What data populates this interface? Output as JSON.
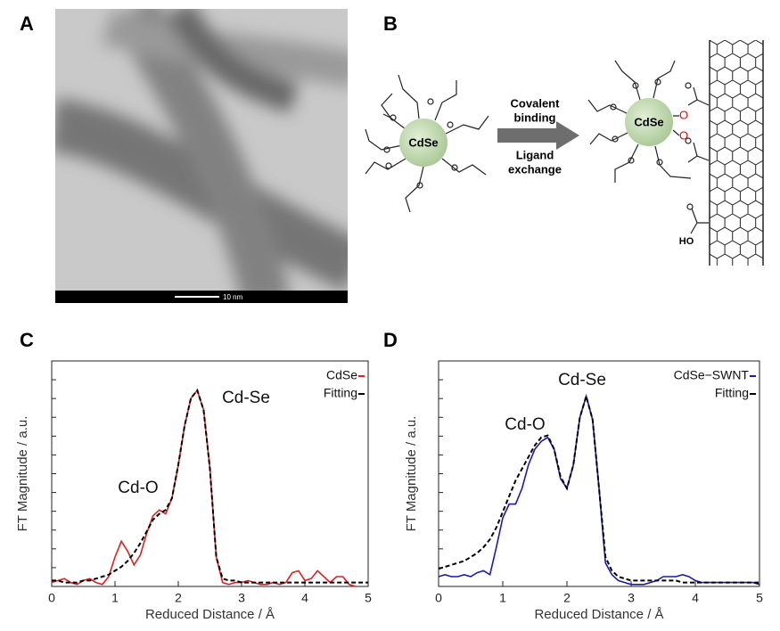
{
  "panels": [
    {
      "label": "A",
      "scale_bar": "10 nm"
    },
    {
      "label": "B",
      "particle_left": "CdSe",
      "arrow_top": [
        "Covalent",
        "binding"
      ],
      "arrow_bottom": [
        "Ligand",
        "exchange"
      ],
      "particle_right": "CdSe",
      "bond_atoms": [
        "O",
        "O"
      ],
      "acid_group": "HO"
    },
    {
      "label": "C"
    },
    {
      "label": "D"
    }
  ],
  "chart_data": [
    {
      "type": "line",
      "xlabel": "Reduced Distance / Å",
      "ylabel": "FT Magnitude / a.u.",
      "xlim": [
        0,
        5
      ],
      "xticks": [
        0,
        1,
        2,
        3,
        4,
        5
      ],
      "ylim": [
        0,
        1.15
      ],
      "legend": "upper right",
      "annotations": [
        "Cd-O",
        "Cd-Se"
      ],
      "x": [
        0,
        0.1,
        0.2,
        0.3,
        0.4,
        0.5,
        0.6,
        0.7,
        0.8,
        0.9,
        1,
        1.1,
        1.2,
        1.3,
        1.4,
        1.5,
        1.6,
        1.7,
        1.8,
        1.9,
        2,
        2.1,
        2.2,
        2.3,
        2.4,
        2.5,
        2.6,
        2.7,
        2.8,
        2.9,
        3,
        3.1,
        3.2,
        3.3,
        3.4,
        3.5,
        3.6,
        3.7,
        3.8,
        3.9,
        4,
        4.1,
        4.2,
        4.3,
        4.4,
        4.5,
        4.6,
        4.7,
        4.8,
        4.9,
        5
      ],
      "series": [
        {
          "name": "CdSe",
          "color": "#e02020",
          "line_style": "solid",
          "values": [
            0.02,
            0.03,
            0.04,
            0.02,
            0.01,
            0.03,
            0.04,
            0.02,
            0.01,
            0.05,
            0.15,
            0.23,
            0.18,
            0.11,
            0.16,
            0.27,
            0.36,
            0.39,
            0.37,
            0.45,
            0.62,
            0.82,
            0.96,
            1.0,
            0.9,
            0.6,
            0.15,
            0.02,
            0.01,
            0.02,
            0.02,
            0.03,
            0.02,
            0.01,
            0.01,
            0.02,
            0.01,
            0.02,
            0.07,
            0.08,
            0.03,
            0.04,
            0.08,
            0.05,
            0.02,
            0.05,
            0.05,
            0.01,
            0.0,
            null,
            null
          ]
        },
        {
          "name": "Fitting",
          "color": "#000000",
          "line_style": "dashed",
          "values": [
            0.03,
            0.03,
            0.02,
            0.02,
            0.02,
            0.03,
            0.03,
            0.04,
            0.05,
            0.06,
            0.08,
            0.1,
            0.13,
            0.17,
            0.22,
            0.28,
            0.34,
            0.37,
            0.39,
            0.45,
            0.62,
            0.82,
            0.96,
            1.0,
            0.9,
            0.6,
            0.15,
            0.04,
            0.03,
            0.03,
            0.02,
            0.02,
            0.02,
            0.02,
            0.02,
            0.02,
            0.02,
            0.02,
            0.02,
            0.02,
            0.02,
            0.02,
            0.02,
            0.02,
            0.02,
            0.02,
            0.02,
            0.02,
            0.02,
            0.02,
            0.02
          ]
        }
      ]
    },
    {
      "type": "line",
      "xlabel": "Reduced Distance / Å",
      "ylabel": "FT Magnitude / a.u.",
      "xlim": [
        0,
        5
      ],
      "xticks": [
        0,
        1,
        2,
        3,
        4,
        5
      ],
      "ylim": [
        0,
        1.15
      ],
      "legend": "upper right",
      "annotations": [
        "Cd-O",
        "Cd-Se"
      ],
      "x": [
        0,
        0.1,
        0.2,
        0.3,
        0.4,
        0.5,
        0.6,
        0.7,
        0.8,
        0.9,
        1,
        1.1,
        1.2,
        1.3,
        1.4,
        1.5,
        1.6,
        1.7,
        1.8,
        1.9,
        2,
        2.1,
        2.2,
        2.3,
        2.4,
        2.5,
        2.6,
        2.7,
        2.8,
        2.9,
        3,
        3.1,
        3.2,
        3.3,
        3.4,
        3.5,
        3.6,
        3.7,
        3.8,
        3.9,
        4,
        4.1,
        4.2,
        4.3,
        4.4,
        4.5,
        4.6,
        4.7,
        4.8,
        4.9,
        5
      ],
      "series": [
        {
          "name": "CdSe−SWNT",
          "color": "#1a1ab0",
          "line_style": "solid",
          "values": [
            0.05,
            0.06,
            0.05,
            0.05,
            0.06,
            0.05,
            0.07,
            0.08,
            0.06,
            0.2,
            0.35,
            0.42,
            0.42,
            0.5,
            0.62,
            0.7,
            0.74,
            0.76,
            0.7,
            0.55,
            0.5,
            0.62,
            0.86,
            0.97,
            0.85,
            0.5,
            0.12,
            0.06,
            0.03,
            0.02,
            0.01,
            0.01,
            0.01,
            0.02,
            0.03,
            0.05,
            0.05,
            0.05,
            0.06,
            0.05,
            0.03,
            0.02,
            0.02,
            0.02,
            0.02,
            0.02,
            0.02,
            0.02,
            0.02,
            0.02,
            0.01
          ]
        },
        {
          "name": "Fitting",
          "color": "#000000",
          "line_style": "dashed",
          "values": [
            0.09,
            0.1,
            0.11,
            0.12,
            0.13,
            0.15,
            0.17,
            0.2,
            0.24,
            0.3,
            0.38,
            0.46,
            0.54,
            0.6,
            0.66,
            0.72,
            0.76,
            0.77,
            0.7,
            0.56,
            0.5,
            0.62,
            0.86,
            0.97,
            0.85,
            0.5,
            0.15,
            0.08,
            0.05,
            0.04,
            0.03,
            0.03,
            0.03,
            0.03,
            0.03,
            0.03,
            0.03,
            0.03,
            0.02,
            0.02,
            0.02,
            0.02,
            0.02,
            0.02,
            0.02,
            0.02,
            0.02,
            0.02,
            0.02,
            0.02,
            0.02
          ]
        }
      ]
    }
  ]
}
